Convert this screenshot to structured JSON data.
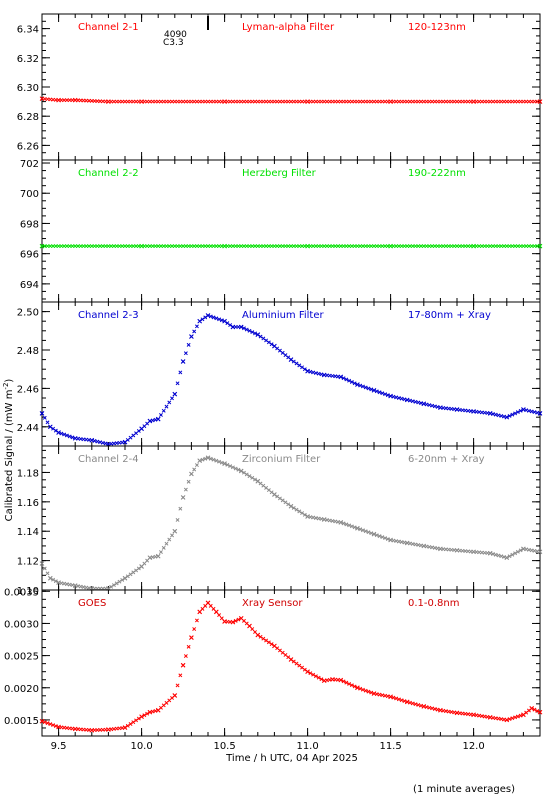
{
  "figure": {
    "ylabel_prefix": "Calibrated Signal / (mW m",
    "ylabel_sup": "-2",
    "ylabel_suffix": ")",
    "xlabel": "Time / h UTC, 04 Apr 2025",
    "footer": "(1 minute averages)",
    "annotation_top": "4090",
    "annotation_sub": "C3.3",
    "xticks": [
      "9.5",
      "10.0",
      "10.5",
      "11.0",
      "11.5",
      "12.0"
    ]
  },
  "colors": {
    "red": "#ff0000",
    "green": "#00e000",
    "blue": "#0000d0",
    "gray": "#8a8a8a",
    "goes_label": "#d00000"
  },
  "chart_data": [
    {
      "type": "scatter",
      "channel": "Channel 2-1",
      "filter": "Lyman-alpha Filter",
      "band": "120-123nm",
      "color": "#ff0000",
      "xlim": [
        9.4,
        12.4
      ],
      "ylim": [
        6.25,
        6.35
      ],
      "yticks": [
        "6.26",
        "6.28",
        "6.30",
        "6.32",
        "6.34"
      ],
      "x": [
        9.4,
        9.5,
        9.6,
        9.8,
        10.0,
        10.5,
        11.0,
        11.5,
        12.0,
        12.4
      ],
      "y": [
        6.292,
        6.291,
        6.291,
        6.29,
        6.29,
        6.29,
        6.29,
        6.29,
        6.29,
        6.29
      ]
    },
    {
      "type": "scatter",
      "channel": "Channel 2-2",
      "filter": "Herzberg Filter",
      "band": "190-222nm",
      "color": "#00e000",
      "xlim": [
        9.4,
        12.4
      ],
      "ylim": [
        692.8,
        702.2
      ],
      "yticks": [
        "694",
        "696",
        "698",
        "700",
        "702"
      ],
      "x": [
        9.4,
        10.0,
        10.5,
        11.0,
        11.5,
        12.0,
        12.4
      ],
      "y": [
        696.5,
        696.5,
        696.5,
        696.5,
        696.5,
        696.5,
        696.5
      ]
    },
    {
      "type": "scatter",
      "channel": "Channel 2-3",
      "filter": "Aluminium Filter",
      "band": "17-80nm + Xray",
      "color": "#0000d0",
      "xlim": [
        9.4,
        12.4
      ],
      "ylim": [
        2.43,
        2.505
      ],
      "yticks": [
        "2.44",
        "2.46",
        "2.48",
        "2.50"
      ],
      "x": [
        9.4,
        9.45,
        9.5,
        9.6,
        9.7,
        9.8,
        9.9,
        10.0,
        10.05,
        10.1,
        10.2,
        10.25,
        10.3,
        10.35,
        10.4,
        10.5,
        10.55,
        10.6,
        10.7,
        10.8,
        10.9,
        11.0,
        11.1,
        11.2,
        11.3,
        11.4,
        11.5,
        11.6,
        11.7,
        11.8,
        11.9,
        12.0,
        12.1,
        12.2,
        12.3,
        12.4
      ],
      "y": [
        2.447,
        2.44,
        2.437,
        2.434,
        2.433,
        2.431,
        2.432,
        2.439,
        2.443,
        2.444,
        2.457,
        2.474,
        2.487,
        2.495,
        2.498,
        2.495,
        2.492,
        2.492,
        2.488,
        2.482,
        2.475,
        2.469,
        2.467,
        2.466,
        2.462,
        2.459,
        2.456,
        2.454,
        2.452,
        2.45,
        2.449,
        2.448,
        2.447,
        2.445,
        2.449,
        2.447
      ]
    },
    {
      "type": "scatter",
      "channel": "Channel 2-4",
      "filter": "Zirconium Filter",
      "band": "6-20nm + Xray",
      "color": "#8a8a8a",
      "xlim": [
        9.4,
        12.4
      ],
      "ylim": [
        1.1,
        1.198
      ],
      "yticks": [
        "1.10",
        "1.12",
        "1.14",
        "1.16",
        "1.18",
        "1.20"
      ],
      "x": [
        9.4,
        9.45,
        9.5,
        9.6,
        9.7,
        9.8,
        9.9,
        10.0,
        10.05,
        10.1,
        10.2,
        10.25,
        10.3,
        10.35,
        10.4,
        10.5,
        10.6,
        10.7,
        10.8,
        10.9,
        11.0,
        11.1,
        11.2,
        11.3,
        11.4,
        11.5,
        11.6,
        11.7,
        11.8,
        11.9,
        12.0,
        12.1,
        12.2,
        12.3,
        12.4
      ],
      "y": [
        1.118,
        1.108,
        1.105,
        1.103,
        1.101,
        1.101,
        1.108,
        1.116,
        1.122,
        1.123,
        1.14,
        1.163,
        1.179,
        1.188,
        1.19,
        1.186,
        1.181,
        1.174,
        1.165,
        1.157,
        1.15,
        1.148,
        1.146,
        1.142,
        1.138,
        1.134,
        1.132,
        1.13,
        1.128,
        1.127,
        1.126,
        1.125,
        1.122,
        1.128,
        1.126
      ]
    },
    {
      "type": "scatter",
      "channel": "GOES",
      "filter": "Xray Sensor",
      "band": "0.1-0.8nm",
      "color": "#ff0000",
      "xlim": [
        9.4,
        12.4
      ],
      "ylim": [
        0.00125,
        0.00352
      ],
      "yticks": [
        "0.0015",
        "0.0020",
        "0.0025",
        "0.0030",
        "0.0035"
      ],
      "x": [
        9.4,
        9.5,
        9.6,
        9.7,
        9.8,
        9.9,
        10.0,
        10.05,
        10.1,
        10.2,
        10.25,
        10.3,
        10.35,
        10.4,
        10.45,
        10.5,
        10.55,
        10.6,
        10.65,
        10.7,
        10.8,
        10.9,
        11.0,
        11.1,
        11.15,
        11.2,
        11.3,
        11.4,
        11.5,
        11.6,
        11.7,
        11.8,
        11.9,
        12.0,
        12.1,
        12.2,
        12.3,
        12.35,
        12.4
      ],
      "y": [
        0.00148,
        0.00139,
        0.00136,
        0.00134,
        0.00135,
        0.00138,
        0.00155,
        0.00162,
        0.00165,
        0.00188,
        0.00235,
        0.00278,
        0.00318,
        0.00332,
        0.00318,
        0.00303,
        0.00302,
        0.00308,
        0.00296,
        0.00282,
        0.00265,
        0.00244,
        0.00225,
        0.00211,
        0.00213,
        0.00212,
        0.002,
        0.00191,
        0.00186,
        0.00178,
        0.00171,
        0.00165,
        0.00161,
        0.00158,
        0.00154,
        0.0015,
        0.00158,
        0.00168,
        0.00162
      ]
    }
  ]
}
